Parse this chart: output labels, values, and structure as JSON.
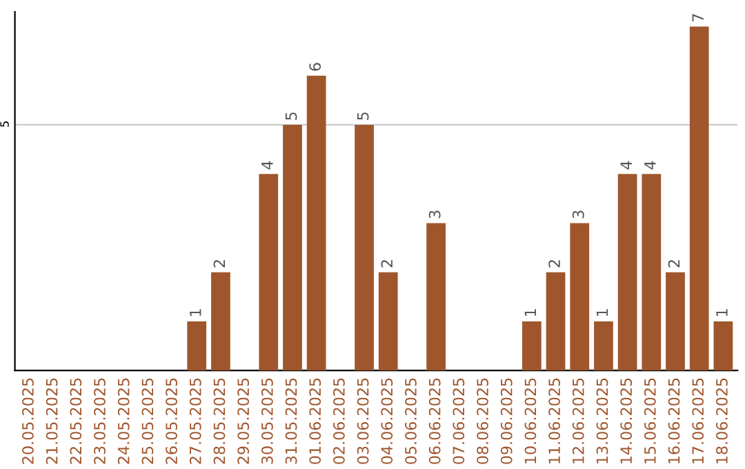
{
  "chart_data": {
    "type": "bar",
    "categories": [
      "20.05.2025",
      "21.05.2025",
      "22.05.2025",
      "23.05.2025",
      "24.05.2025",
      "25.05.2025",
      "26.05.2025",
      "27.05.2025",
      "28.05.2025",
      "29.05.2025",
      "30.05.2025",
      "31.05.2025",
      "01.06.2025",
      "02.06.2025",
      "03.06.2025",
      "04.06.2025",
      "05.06.2025",
      "06.06.2025",
      "07.06.2025",
      "08.06.2025",
      "09.06.2025",
      "10.06.2025",
      "11.06.2025",
      "12.06.2025",
      "13.06.2025",
      "14.06.2025",
      "15.06.2025",
      "16.06.2025",
      "17.06.2025",
      "18.06.2025"
    ],
    "values": [
      0,
      0,
      0,
      0,
      0,
      0,
      0,
      1,
      2,
      0,
      4,
      5,
      6,
      0,
      5,
      2,
      0,
      3,
      0,
      0,
      0,
      1,
      2,
      3,
      1,
      4,
      4,
      2,
      7,
      1
    ],
    "value_labels": [
      null,
      null,
      null,
      null,
      null,
      null,
      null,
      "1",
      "2",
      null,
      "4",
      "5",
      "6",
      null,
      "5",
      "2",
      null,
      "3",
      null,
      null,
      null,
      "1",
      "2",
      "3",
      "1",
      "4",
      "4",
      "2",
      "7",
      "1"
    ],
    "color": "#a0562c",
    "ylim": [
      0,
      7.3
    ],
    "yticks": [
      5
    ],
    "grid": "y"
  }
}
